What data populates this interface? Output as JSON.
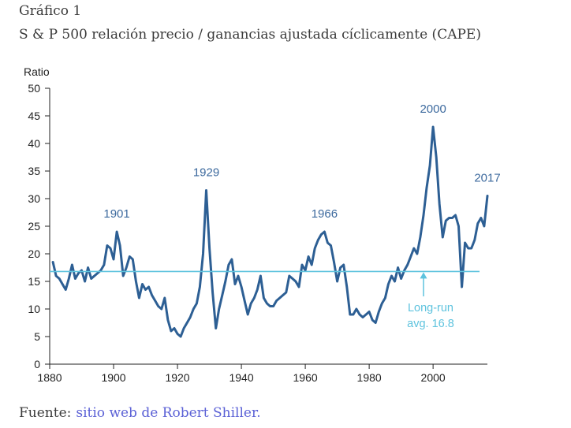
{
  "header": {
    "title": "Gráfico 1",
    "subtitle": "S & P 500 relación precio / ganancias ajustada cíclicamente (CAPE)"
  },
  "chart_data": {
    "type": "line",
    "title": "S & P 500 relación precio / ganancias ajustada cíclicamente (CAPE)",
    "ylabel": "Ratio",
    "xlabel": "",
    "xlim": [
      1880,
      2017
    ],
    "ylim": [
      0,
      50
    ],
    "x_ticks": [
      "1880",
      "1900",
      "1920",
      "1940",
      "1960",
      "1980",
      "2000"
    ],
    "y_ticks": [
      "0",
      "5",
      "10",
      "15",
      "20",
      "25",
      "30",
      "35",
      "40",
      "45",
      "50"
    ],
    "grid": false,
    "colors": {
      "series": "#2d5f94",
      "average": "#5ec3de",
      "labels": "#3d6a9e",
      "axis": "#222222"
    },
    "series": [
      {
        "name": "CAPE",
        "x": [
          1881,
          1882,
          1883,
          1884,
          1885,
          1886,
          1887,
          1888,
          1889,
          1890,
          1891,
          1892,
          1893,
          1894,
          1895,
          1896,
          1897,
          1898,
          1899,
          1900,
          1901,
          1902,
          1903,
          1904,
          1905,
          1906,
          1907,
          1908,
          1909,
          1910,
          1911,
          1912,
          1913,
          1914,
          1915,
          1916,
          1917,
          1918,
          1919,
          1920,
          1921,
          1922,
          1923,
          1924,
          1925,
          1926,
          1927,
          1928,
          1929,
          1930,
          1931,
          1932,
          1933,
          1934,
          1935,
          1936,
          1937,
          1938,
          1939,
          1940,
          1941,
          1942,
          1943,
          1944,
          1945,
          1946,
          1947,
          1948,
          1949,
          1950,
          1951,
          1952,
          1953,
          1954,
          1955,
          1956,
          1957,
          1958,
          1959,
          1960,
          1961,
          1962,
          1963,
          1964,
          1965,
          1966,
          1967,
          1968,
          1969,
          1970,
          1971,
          1972,
          1973,
          1974,
          1975,
          1976,
          1977,
          1978,
          1979,
          1980,
          1981,
          1982,
          1983,
          1984,
          1985,
          1986,
          1987,
          1988,
          1989,
          1990,
          1991,
          1992,
          1993,
          1994,
          1995,
          1996,
          1997,
          1998,
          1999,
          2000,
          2001,
          2002,
          2003,
          2004,
          2005,
          2006,
          2007,
          2008,
          2009,
          2010,
          2011,
          2012,
          2013,
          2014,
          2015,
          2016,
          2017
        ],
        "values": [
          18.5,
          16,
          15.5,
          14.5,
          13.5,
          15.5,
          18,
          15.5,
          16.5,
          17,
          15,
          17.5,
          15.5,
          16,
          16.5,
          17,
          18,
          21.5,
          21,
          19,
          24,
          21.5,
          16,
          17.5,
          19.5,
          19,
          15,
          12,
          14.5,
          13.5,
          14,
          12.5,
          11.5,
          10.5,
          10,
          12,
          8,
          6,
          6.5,
          5.5,
          5,
          6.5,
          7.5,
          8.5,
          10,
          11,
          14,
          20,
          31.5,
          21,
          13,
          6.5,
          10,
          12.5,
          15,
          18,
          19,
          14.5,
          16,
          14,
          11.5,
          9,
          11,
          12,
          13.5,
          16,
          12,
          11,
          10.5,
          10.5,
          11.5,
          12,
          12.5,
          13,
          16,
          15.5,
          15,
          14,
          18,
          17,
          19.5,
          18,
          21,
          22.5,
          23.5,
          24,
          22,
          21.5,
          18.5,
          15,
          17.5,
          18,
          14,
          9,
          9,
          10,
          9,
          8.5,
          9,
          9.5,
          8,
          7.5,
          9.5,
          11,
          12,
          14.5,
          16,
          15,
          17.5,
          15.5,
          17,
          18,
          19.5,
          21,
          20,
          23,
          27,
          32,
          36,
          43,
          37.5,
          29,
          23,
          26,
          26.5,
          26.5,
          27,
          25,
          14,
          22,
          21,
          21,
          22.5,
          25.5,
          26.5,
          25,
          30.5
        ]
      }
    ],
    "average": {
      "value": 16.8,
      "label_line1": "Long-run",
      "label_line2": "avg. 16.8"
    },
    "annotations": [
      {
        "text": "1901",
        "x": 1901
      },
      {
        "text": "1929",
        "x": 1929
      },
      {
        "text": "1966",
        "x": 1966
      },
      {
        "text": "2000",
        "x": 2000
      },
      {
        "text": "2017",
        "x": 2017
      }
    ]
  },
  "footer": {
    "label": "Fuente:",
    "link_text": "sitio web de Robert Shiller."
  }
}
